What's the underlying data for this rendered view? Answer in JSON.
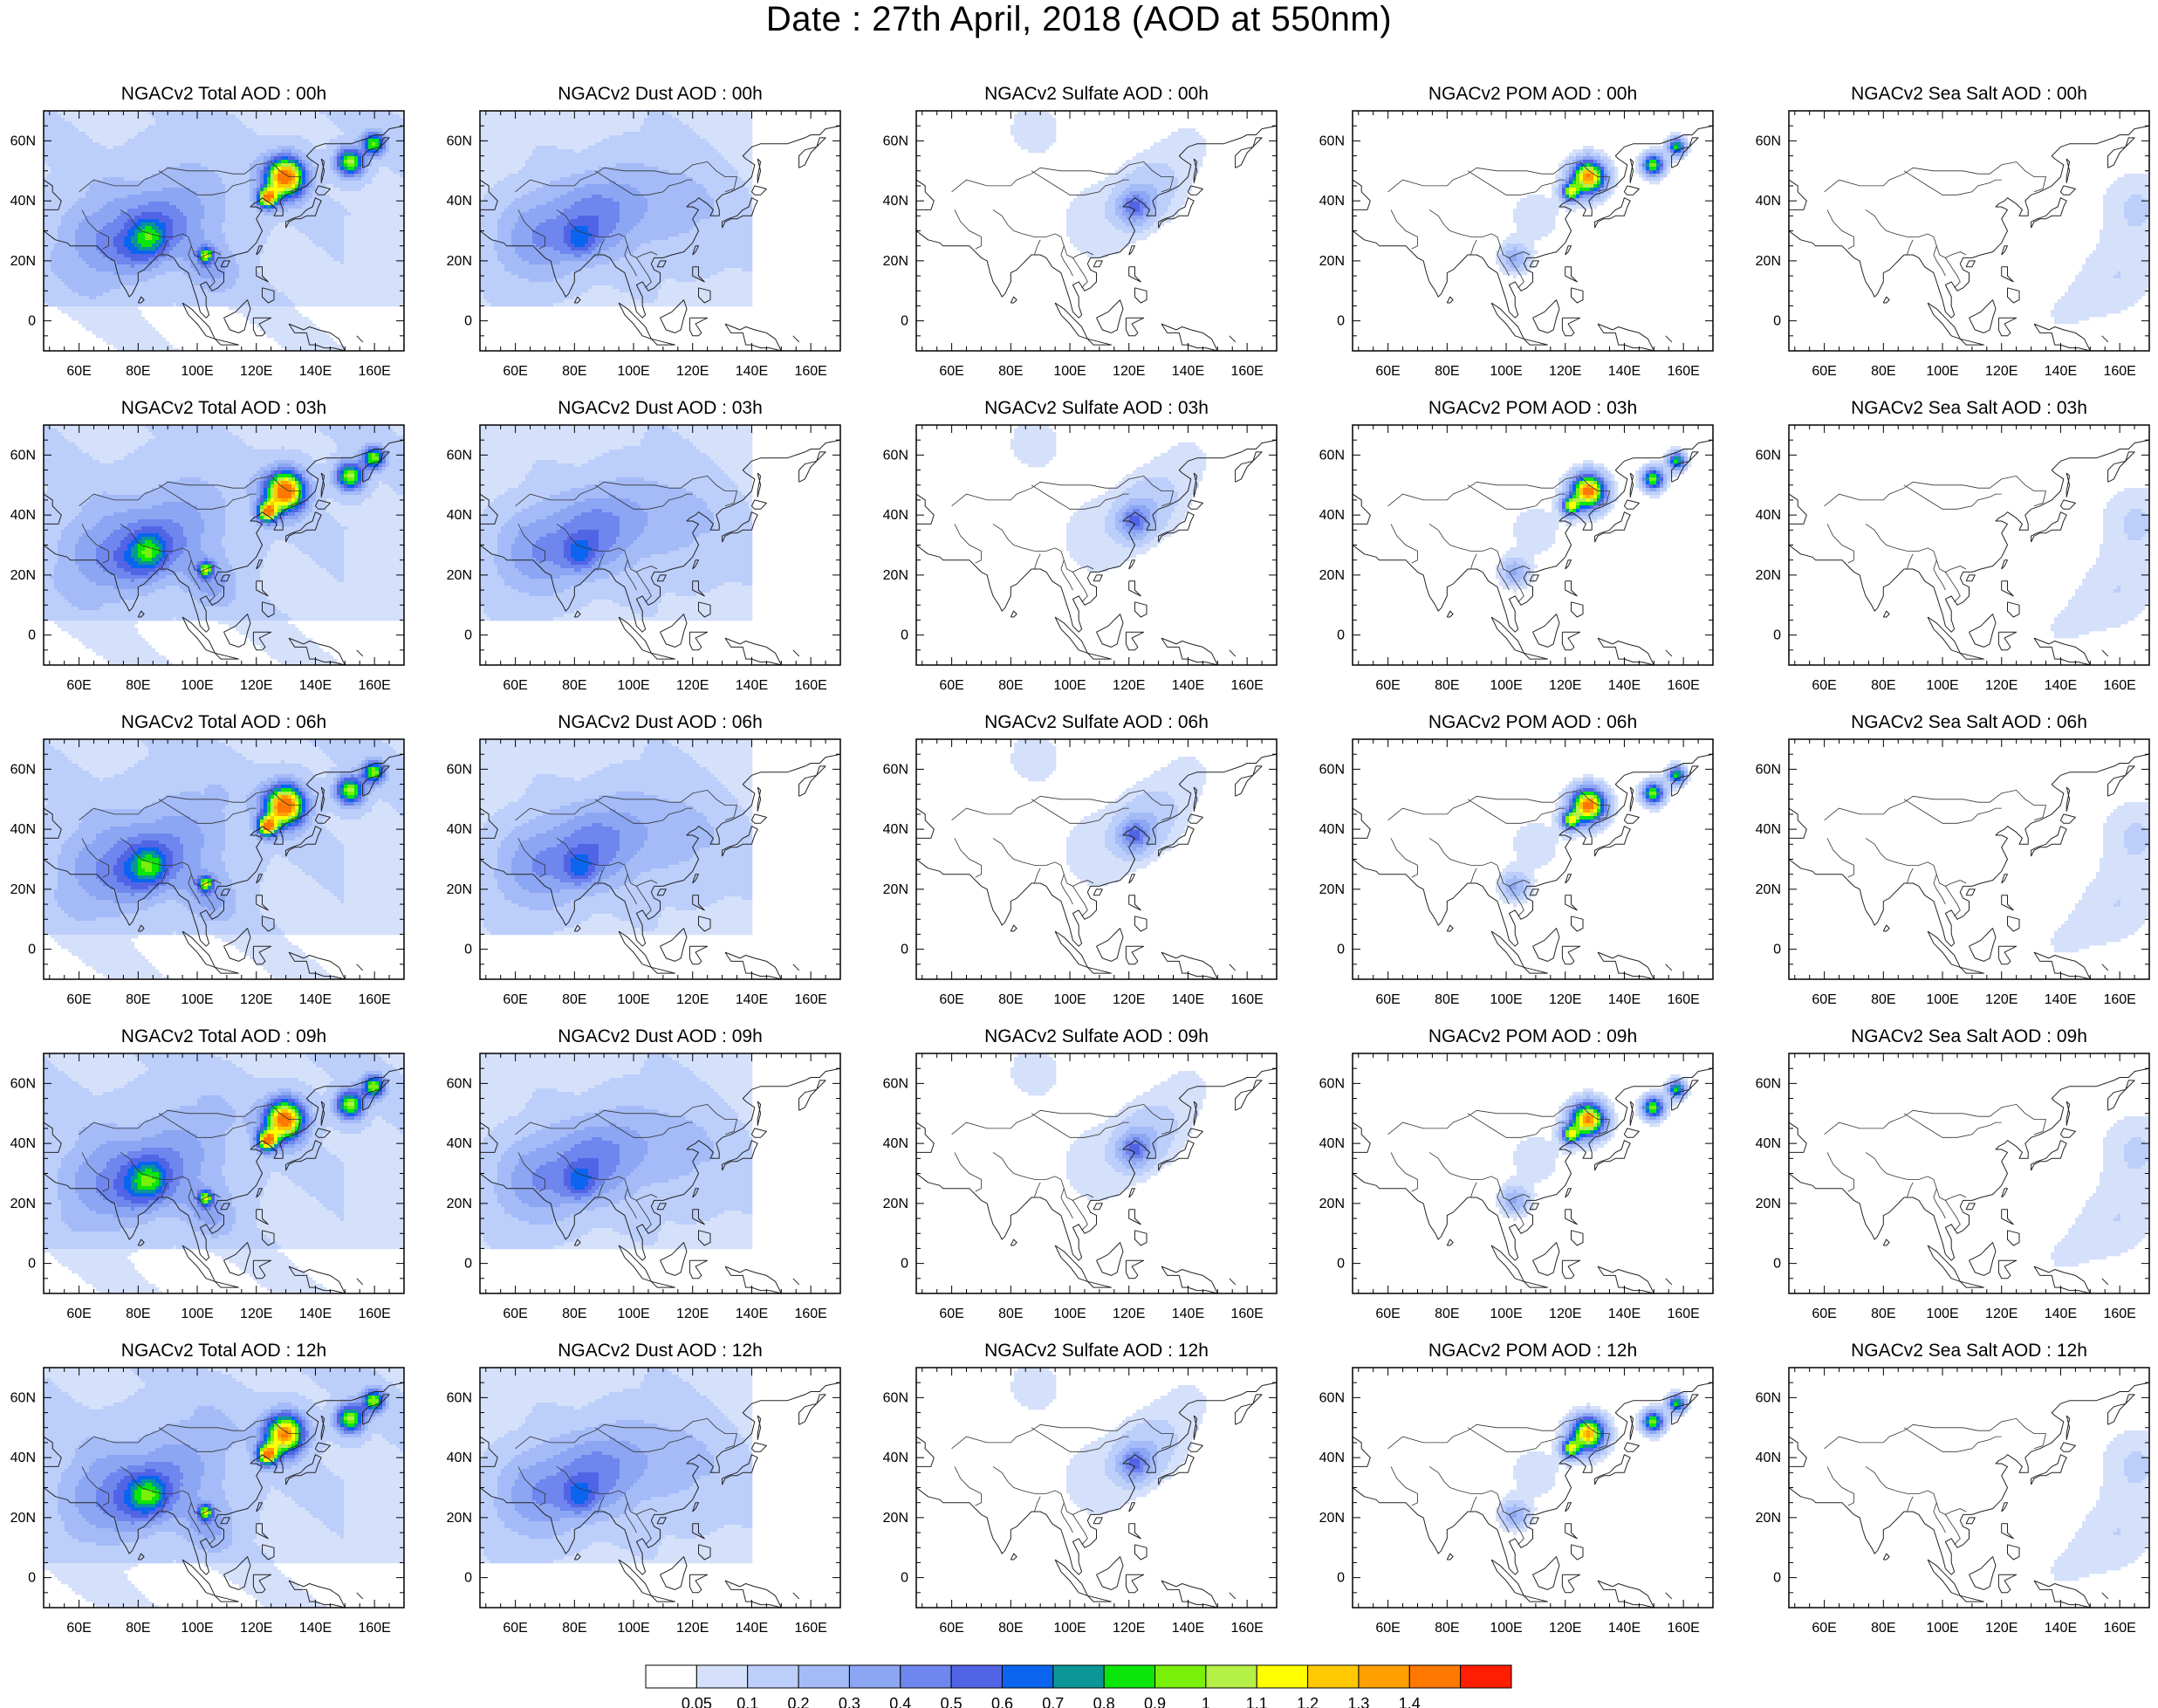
{
  "title": "Date : 27th April, 2018 (AOD at 550nm)",
  "lon_ticks": [
    "60E",
    "80E",
    "100E",
    "120E",
    "140E",
    "160E"
  ],
  "lat_ticks": [
    "60N",
    "40N",
    "20N",
    "0"
  ],
  "panels": [
    [
      "NGACv2 Total AOD : 00h",
      "NGACv2 Dust AOD : 00h",
      "NGACv2 Sulfate AOD : 00h",
      "NGACv2 POM AOD : 00h",
      "NGACv2 Sea Salt AOD : 00h"
    ],
    [
      "NGACv2 Total AOD : 03h",
      "NGACv2 Dust AOD : 03h",
      "NGACv2 Sulfate AOD : 03h",
      "NGACv2 POM AOD : 03h",
      "NGACv2 Sea Salt AOD : 03h"
    ],
    [
      "NGACv2 Total AOD : 06h",
      "NGACv2 Dust AOD : 06h",
      "NGACv2 Sulfate AOD : 06h",
      "NGACv2 POM AOD : 06h",
      "NGACv2 Sea Salt AOD : 06h"
    ],
    [
      "NGACv2 Total AOD : 09h",
      "NGACv2 Dust AOD : 09h",
      "NGACv2 Sulfate AOD : 09h",
      "NGACv2 POM AOD : 09h",
      "NGACv2 Sea Salt  AOD : 09h"
    ],
    [
      "NGACv2 Total AOD  : 12h",
      "NGACv2 Dust AOD : 12h",
      "NGACv2 Sulfate AOD : 12h",
      "NGACv2 POM  AOD : 12h",
      "NGACv2 Sea Salt  AOD : 12h"
    ]
  ],
  "colorbar": {
    "labels": [
      "0.05",
      "0.1",
      "0.2",
      "0.3",
      "0.4",
      "0.5",
      "0.6",
      "0.7",
      "0.8",
      "0.9",
      "1",
      "1.1",
      "1.2",
      "1.3",
      "1.4"
    ],
    "colors": [
      "#ffffff",
      "#d5e0fa",
      "#bccefa",
      "#a4bbf8",
      "#8ca6f3",
      "#6f86ee",
      "#5264e6",
      "#0a64f0",
      "#0a9696",
      "#0ae60a",
      "#78f00a",
      "#b4f046",
      "#ffff00",
      "#ffc800",
      "#ffa000",
      "#ff7800",
      "#ff1e00"
    ]
  }
}
